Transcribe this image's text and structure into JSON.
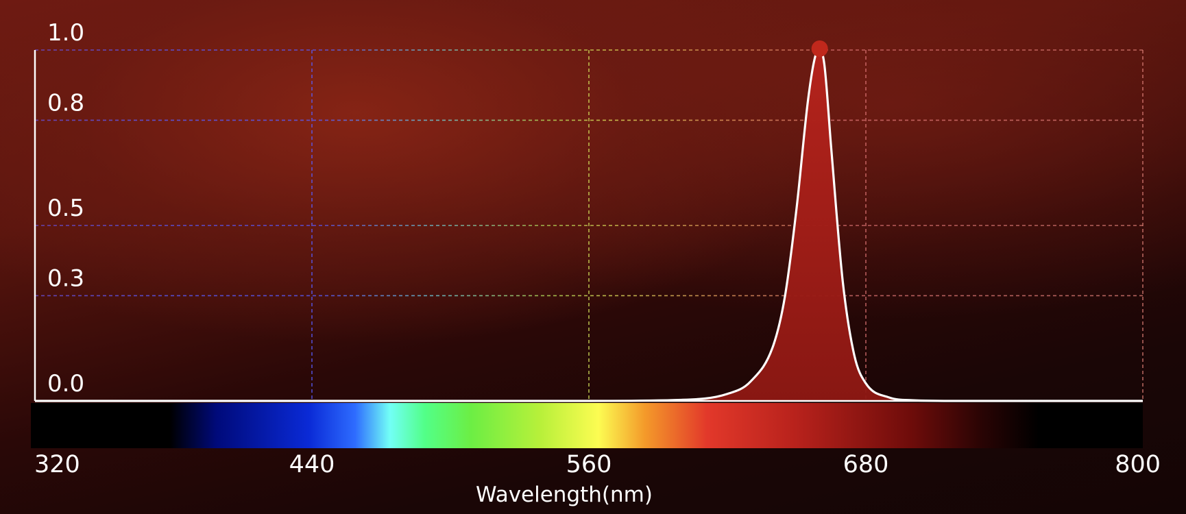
{
  "chart_data": {
    "type": "area",
    "xlabel": "Wavelength(nm)",
    "ylabel": "",
    "xlim": [
      320,
      800
    ],
    "ylim": [
      0.0,
      1.0
    ],
    "x_ticks": [
      "320",
      "440",
      "560",
      "680",
      "800"
    ],
    "y_ticks": [
      "1.0",
      "0.8",
      "0.5",
      "0.3",
      "0.0"
    ],
    "grid": true,
    "series": [
      {
        "x": [
          320,
          560,
          600,
          620,
          630,
          640,
          645,
          650,
          655,
          658,
          660,
          662,
          665,
          670,
          675,
          680,
          690,
          700,
          720,
          800
        ],
        "y": [
          0.0,
          0.0,
          0.003,
          0.02,
          0.055,
          0.16,
          0.3,
          0.55,
          0.86,
          0.98,
          1.0,
          0.96,
          0.72,
          0.34,
          0.13,
          0.05,
          0.01,
          0.002,
          0.0,
          0.0
        ]
      }
    ],
    "peak": {
      "x": 660,
      "y": 1.0
    },
    "colors": {
      "line": "#ffffff",
      "fill": "#b4231c",
      "peak_marker": "#c0281c",
      "axis": "#ffffff"
    },
    "wavelength_bar_stops": [
      {
        "nm": 320,
        "color": "#000000"
      },
      {
        "nm": 380,
        "color": "#000000"
      },
      {
        "nm": 400,
        "color": "#000a7a"
      },
      {
        "nm": 440,
        "color": "#0a2ad6"
      },
      {
        "nm": 460,
        "color": "#2e6cff"
      },
      {
        "nm": 475,
        "color": "#72fff6"
      },
      {
        "nm": 490,
        "color": "#52ff88"
      },
      {
        "nm": 510,
        "color": "#6cee44"
      },
      {
        "nm": 540,
        "color": "#b8f03a"
      },
      {
        "nm": 565,
        "color": "#fcfc52"
      },
      {
        "nm": 585,
        "color": "#f49a2a"
      },
      {
        "nm": 612,
        "color": "#e2382a"
      },
      {
        "nm": 650,
        "color": "#b8221c"
      },
      {
        "nm": 700,
        "color": "#6e0c0a"
      },
      {
        "nm": 730,
        "color": "#2a0404"
      },
      {
        "nm": 755,
        "color": "#000000"
      },
      {
        "nm": 800,
        "color": "#000000"
      }
    ]
  }
}
